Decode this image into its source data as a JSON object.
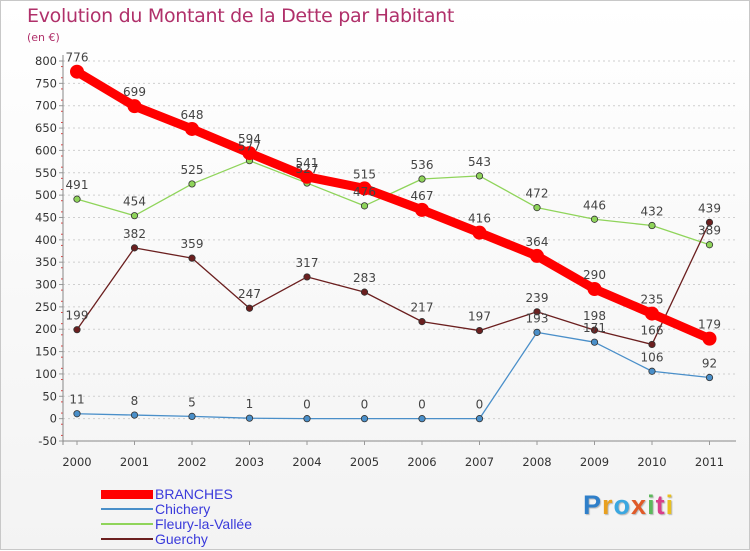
{
  "title": "Evolution du Montant de la Dette par Habitant",
  "unit": "(en €)",
  "logo_text": "Proxiti",
  "chart_data": {
    "type": "line",
    "title": "Evolution du Montant de la Dette par Habitant",
    "ylabel": "(en €)",
    "x": [
      "2000",
      "2001",
      "2002",
      "2003",
      "2004",
      "2005",
      "2006",
      "2007",
      "2008",
      "2009",
      "2010",
      "2011"
    ],
    "ylim": [
      -50,
      800
    ],
    "yticks": [
      "-50",
      "0",
      "50",
      "100",
      "150",
      "200",
      "250",
      "300",
      "350",
      "400",
      "450",
      "500",
      "550",
      "600",
      "650",
      "700",
      "750",
      "800"
    ],
    "grid": "horizontal dotted",
    "legend_position": "bottom-left",
    "series": [
      {
        "name": "BRANCHES",
        "color": "#ff0000",
        "values": [
          776,
          699,
          648,
          594,
          541,
          515,
          467,
          416,
          364,
          290,
          235,
          179
        ],
        "labels": [
          "776",
          "699",
          "648",
          "594",
          "541",
          "515",
          "467",
          "416",
          "364",
          "290",
          "235",
          "179"
        ]
      },
      {
        "name": "Chichery",
        "color": "#4a8fc9",
        "values": [
          11,
          8,
          5,
          1,
          0,
          0,
          0,
          0,
          193,
          171,
          106,
          92
        ],
        "labels": [
          "11",
          "8",
          "5",
          "1",
          "0",
          "0",
          "0",
          "0",
          "193",
          "171",
          "106",
          "92"
        ]
      },
      {
        "name": "Fleury-la-Vallée",
        "color": "#8fd45a",
        "values": [
          491,
          454,
          525,
          577,
          527,
          476,
          536,
          543,
          472,
          446,
          432,
          389
        ],
        "labels": [
          "491",
          "454",
          "525",
          "577",
          "527",
          "476",
          "536",
          "543",
          "472",
          "446",
          "432",
          "389"
        ]
      },
      {
        "name": "Guerchy",
        "color": "#6b1f1f",
        "values": [
          199,
          382,
          359,
          247,
          317,
          283,
          217,
          197,
          239,
          198,
          166,
          439
        ],
        "labels": [
          "199",
          "382",
          "359",
          "247",
          "317",
          "283",
          "217",
          "197",
          "239",
          "198",
          "166",
          "439"
        ]
      }
    ]
  }
}
